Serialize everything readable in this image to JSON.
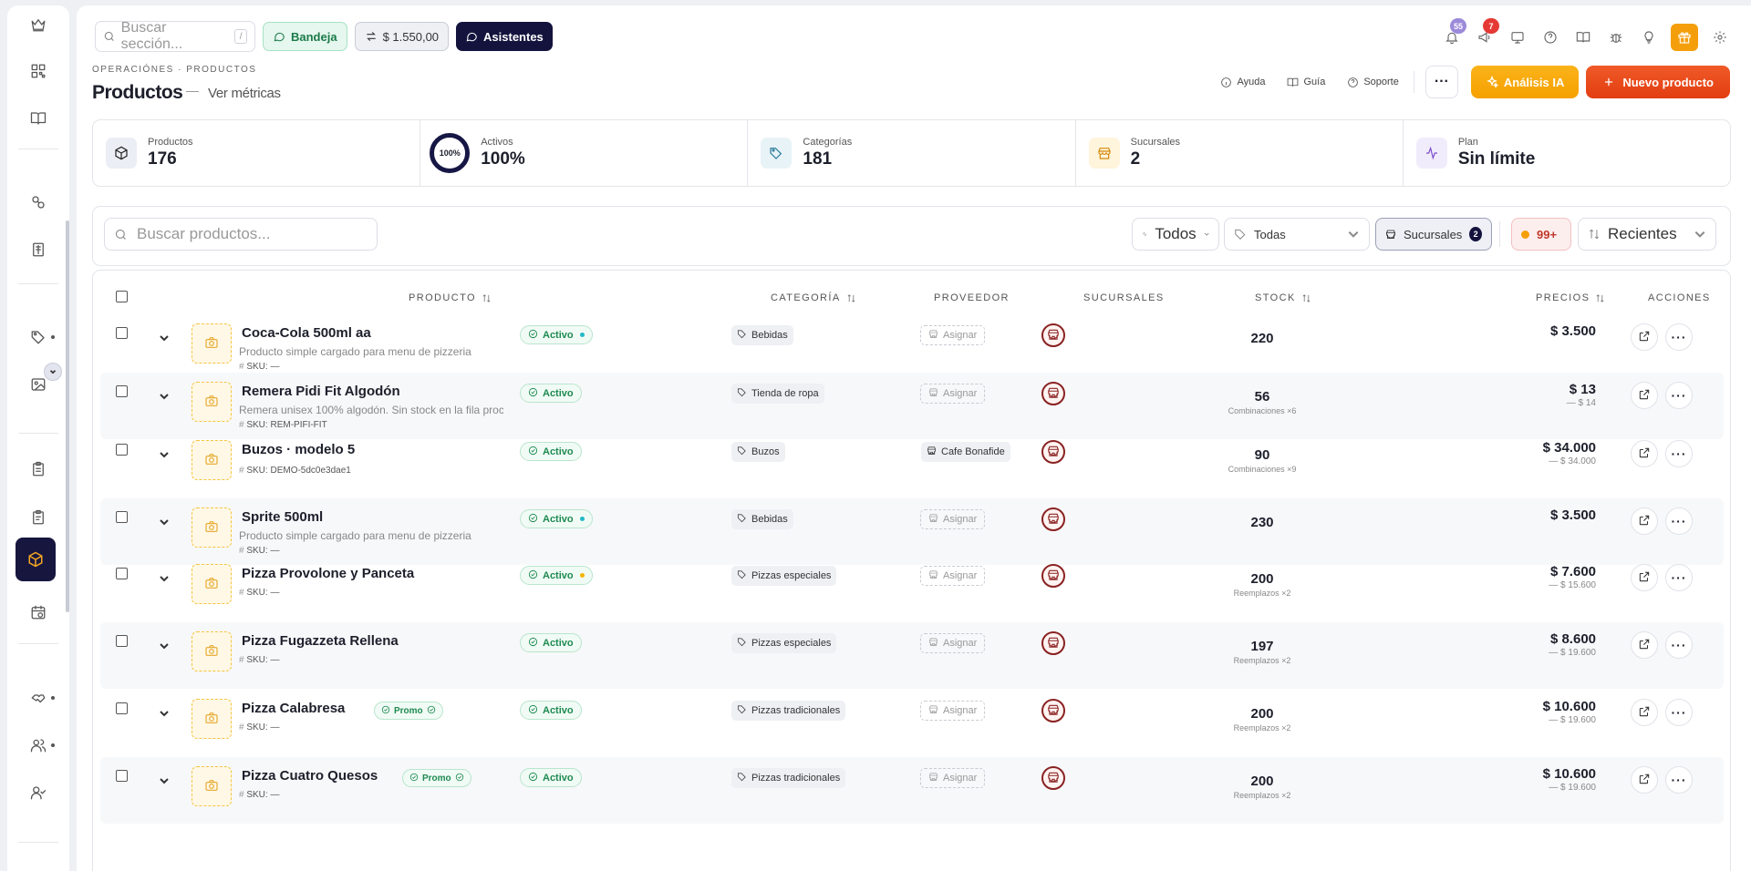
{
  "topbar": {
    "search_placeholder": "Buscar sección...",
    "search_kbd": "/",
    "bandeja": "Bandeja",
    "balance": "$ 1.550,00",
    "asistentes": "Asistentes",
    "notif_count": "55",
    "chat_count": "7"
  },
  "header": {
    "breadcrumb": "OPERACIÓNES · PRODUCTOS",
    "title": "Productos",
    "metrics_link": "Ver métricas",
    "ayuda": "Ayuda",
    "guia": "Guía",
    "soporte": "Soporte",
    "more": "···",
    "analisis_ia": "Análisis IA",
    "nuevo_producto": "Nuevo producto"
  },
  "stats": [
    {
      "label": "Productos",
      "value": "176"
    },
    {
      "label": "Activos",
      "value": "100%",
      "ring": "100%"
    },
    {
      "label": "Categorías",
      "value": "181"
    },
    {
      "label": "Sucursales",
      "value": "2"
    },
    {
      "label": "Plan",
      "value": "Sin límite"
    }
  ],
  "filters": {
    "search_placeholder": "Buscar productos...",
    "todos": "Todos",
    "todas": "Todas",
    "sucursales": "Sucursales",
    "sucursales_count": "2",
    "count_badge": "99+",
    "recientes": "Recientes"
  },
  "table": {
    "headers": {
      "producto": "PRODUCTO",
      "categoria": "CATEGORÍA",
      "proveedor": "PROVEEDOR",
      "sucursales": "SUCURSALES",
      "stock": "STOCK",
      "precios": "PRECIOS",
      "acciones": "ACCIONES"
    },
    "rows": [
      {
        "name": "Coca-Cola 500ml aa",
        "desc": "Producto simple cargado para menu de pizzeria",
        "sku_label": "SKU:",
        "sku": "—",
        "status": "Activo",
        "dot": "#22b8c9",
        "promo": "",
        "category": "Bebidas",
        "provider": "Asignar",
        "stock": "220",
        "stock_sub": "",
        "price": "$ 3.500",
        "price_sub": ""
      },
      {
        "name": "Remera Pidi Fit Algodón",
        "desc": "Remera unisex 100% algodón. Sin stock en la fila proc",
        "sku_label": "SKU:",
        "sku": "REM-PIFI-FIT",
        "status": "Activo",
        "dot": "",
        "promo": "",
        "category": "Tienda de ropa",
        "provider": "Asignar",
        "stock": "56",
        "stock_sub": "Combinaciones ×6",
        "price": "$ 13",
        "price_sub": "— $ 14"
      },
      {
        "name": "Buzos · modelo 5",
        "desc": "",
        "sku_label": "SKU:",
        "sku": "DEMO-5dc0e3dae1",
        "status": "Activo",
        "dot": "",
        "promo": "",
        "category": "Buzos",
        "provider": "Cafe Bonafide",
        "stock": "90",
        "stock_sub": "Combinaciones ×9",
        "price": "$ 34.000",
        "price_sub": "— $ 34.000"
      },
      {
        "name": "Sprite 500ml",
        "desc": "Producto simple cargado para menu de pizzeria",
        "sku_label": "SKU:",
        "sku": "—",
        "status": "Activo",
        "dot": "#22b8c9",
        "promo": "",
        "category": "Bebidas",
        "provider": "Asignar",
        "stock": "230",
        "stock_sub": "",
        "price": "$ 3.500",
        "price_sub": ""
      },
      {
        "name": "Pizza Provolone y Panceta",
        "desc": "",
        "sku_label": "SKU:",
        "sku": "—",
        "status": "Activo",
        "dot": "#f5b400",
        "promo": "",
        "category": "Pizzas especiales",
        "provider": "Asignar",
        "stock": "200",
        "stock_sub": "Reemplazos ×2",
        "price": "$ 7.600",
        "price_sub": "— $ 15.600"
      },
      {
        "name": "Pizza Fugazzeta Rellena",
        "desc": "",
        "sku_label": "SKU:",
        "sku": "—",
        "status": "Activo",
        "dot": "",
        "promo": "",
        "category": "Pizzas especiales",
        "provider": "Asignar",
        "stock": "197",
        "stock_sub": "Reemplazos ×2",
        "price": "$ 8.600",
        "price_sub": "— $ 19.600"
      },
      {
        "name": "Pizza Calabresa",
        "desc": "",
        "sku_label": "SKU:",
        "sku": "—",
        "status": "Activo",
        "dot": "",
        "promo": "Promo",
        "category": "Pizzas tradicionales",
        "provider": "Asignar",
        "stock": "200",
        "stock_sub": "Reemplazos ×2",
        "price": "$ 10.600",
        "price_sub": "— $ 19.600"
      },
      {
        "name": "Pizza Cuatro Quesos",
        "desc": "",
        "sku_label": "SKU:",
        "sku": "—",
        "status": "Activo",
        "dot": "",
        "promo": "Promo",
        "category": "Pizzas tradicionales",
        "provider": "Asignar",
        "stock": "200",
        "stock_sub": "Reemplazos ×2",
        "price": "$ 10.600",
        "price_sub": "— $ 19.600"
      }
    ]
  }
}
